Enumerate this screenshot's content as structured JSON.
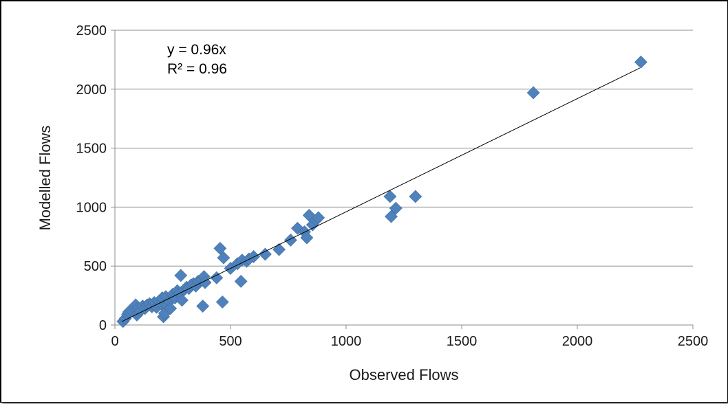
{
  "chart_data": {
    "type": "scatter",
    "title": "",
    "xlabel": "Observed Flows",
    "ylabel": "Modelled Flows",
    "xlim": [
      0,
      2500
    ],
    "ylim": [
      0,
      2500
    ],
    "xticks": [
      "0",
      "500",
      "1000",
      "1500",
      "2000",
      "2500"
    ],
    "yticks": [
      "0",
      "500",
      "1000",
      "1500",
      "2000",
      "2500"
    ],
    "grid": "horizontal",
    "legend": "none",
    "marker_color": "#4f81bd",
    "trendline_color": "#000000",
    "trendline": {
      "slope": 0.96,
      "x_range": [
        30,
        2270
      ]
    },
    "annotations": [
      "y = 0.96x",
      "R² = 0.96"
    ],
    "series": [
      {
        "points": [
          [
            35,
            30
          ],
          [
            45,
            55
          ],
          [
            55,
            90
          ],
          [
            60,
            110
          ],
          [
            70,
            130
          ],
          [
            80,
            150
          ],
          [
            90,
            170
          ],
          [
            95,
            85
          ],
          [
            100,
            140
          ],
          [
            110,
            120
          ],
          [
            120,
            160
          ],
          [
            130,
            140
          ],
          [
            140,
            170
          ],
          [
            150,
            180
          ],
          [
            160,
            155
          ],
          [
            170,
            190
          ],
          [
            180,
            150
          ],
          [
            190,
            200
          ],
          [
            200,
            180
          ],
          [
            205,
            230
          ],
          [
            210,
            70
          ],
          [
            215,
            100
          ],
          [
            220,
            240
          ],
          [
            225,
            170
          ],
          [
            235,
            200
          ],
          [
            240,
            140
          ],
          [
            250,
            260
          ],
          [
            260,
            230
          ],
          [
            270,
            290
          ],
          [
            280,
            270
          ],
          [
            285,
            420
          ],
          [
            290,
            210
          ],
          [
            300,
            300
          ],
          [
            310,
            320
          ],
          [
            320,
            310
          ],
          [
            330,
            340
          ],
          [
            340,
            350
          ],
          [
            350,
            330
          ],
          [
            360,
            370
          ],
          [
            375,
            380
          ],
          [
            380,
            160
          ],
          [
            385,
            410
          ],
          [
            390,
            360
          ],
          [
            440,
            400
          ],
          [
            455,
            650
          ],
          [
            465,
            195
          ],
          [
            470,
            570
          ],
          [
            500,
            480
          ],
          [
            530,
            520
          ],
          [
            545,
            370
          ],
          [
            550,
            550
          ],
          [
            570,
            540
          ],
          [
            580,
            560
          ],
          [
            600,
            580
          ],
          [
            650,
            600
          ],
          [
            710,
            640
          ],
          [
            760,
            720
          ],
          [
            790,
            820
          ],
          [
            820,
            790
          ],
          [
            830,
            740
          ],
          [
            840,
            930
          ],
          [
            855,
            850
          ],
          [
            870,
            890
          ],
          [
            880,
            910
          ],
          [
            1190,
            1090
          ],
          [
            1195,
            920
          ],
          [
            1215,
            990
          ],
          [
            1300,
            1090
          ],
          [
            1810,
            1970
          ],
          [
            2275,
            2230
          ]
        ]
      }
    ]
  }
}
